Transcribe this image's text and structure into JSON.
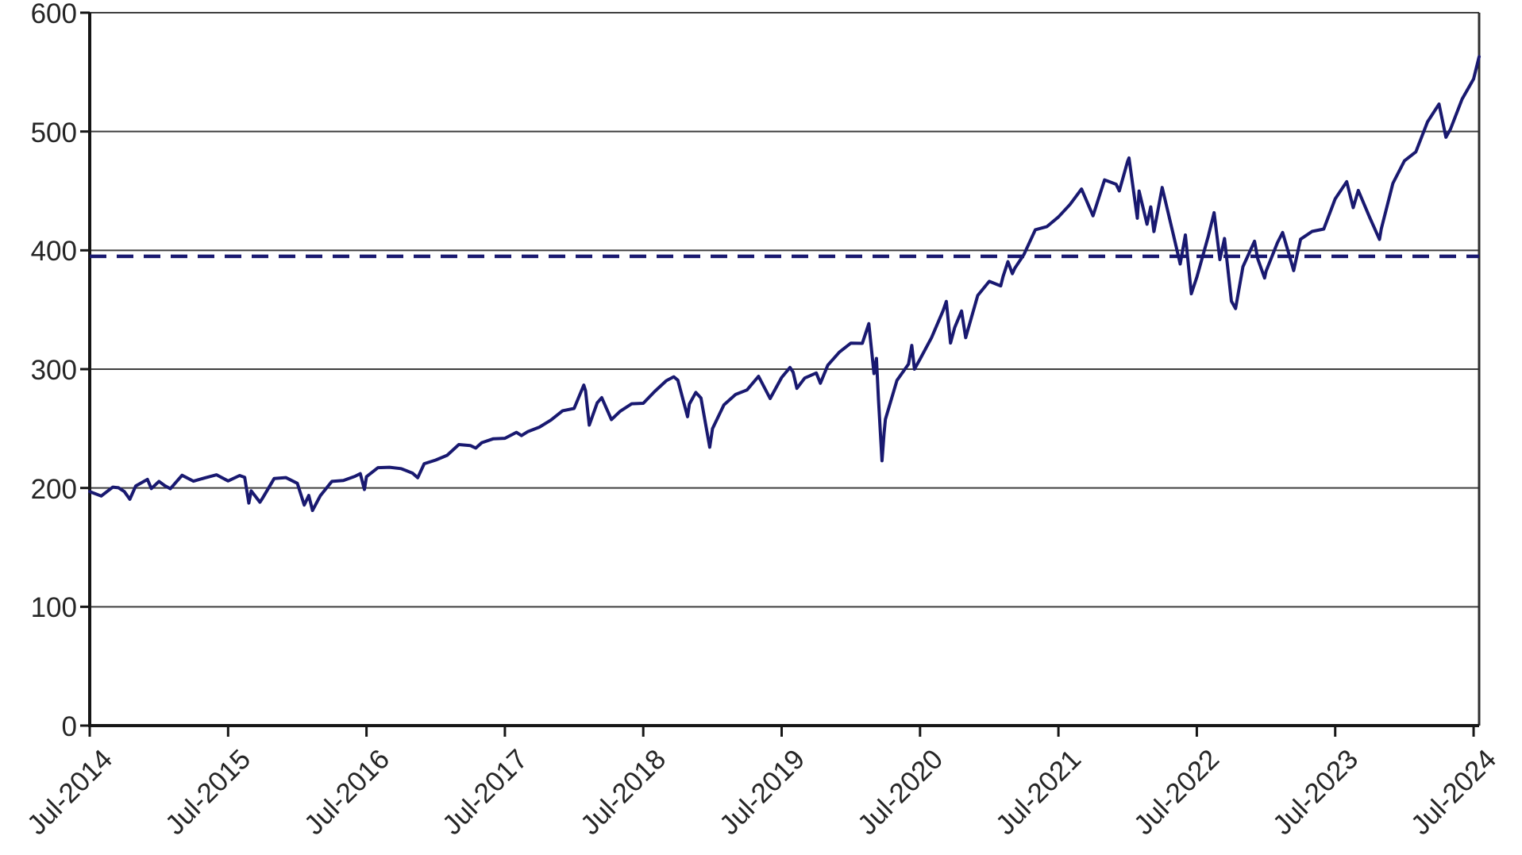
{
  "chart_data": {
    "type": "line",
    "title": "",
    "xlabel": "",
    "ylabel": "",
    "grid": "horizontal",
    "legend": "none",
    "x_axis": {
      "range": [
        2014.5,
        2024.54
      ],
      "tick_values": [
        2014.5,
        2015.5,
        2016.5,
        2017.5,
        2018.5,
        2019.5,
        2020.5,
        2021.5,
        2022.5,
        2023.5,
        2024.5
      ],
      "tick_labels": [
        "Jul-2014",
        "Jul-2015",
        "Jul-2016",
        "Jul-2017",
        "Jul-2018",
        "Jul-2019",
        "Jul-2020",
        "Jul-2021",
        "Jul-2022",
        "Jul-2023",
        "Jul-2024"
      ]
    },
    "y_axis": {
      "range": [
        0,
        600
      ],
      "tick_values": [
        0,
        100,
        200,
        300,
        400,
        500,
        600
      ],
      "tick_labels": [
        "0",
        "100",
        "200",
        "300",
        "400",
        "500",
        "600"
      ]
    },
    "reference_line": {
      "value": 395,
      "style": "dashed"
    },
    "series": [
      {
        "points": [
          [
            2014.5,
            197.0
          ],
          [
            2014.583,
            193.2
          ],
          [
            2014.667,
            200.7
          ],
          [
            2014.708,
            200.2
          ],
          [
            2014.75,
            197.0
          ],
          [
            2014.79,
            190.5
          ],
          [
            2014.833,
            201.7
          ],
          [
            2014.917,
            207.2
          ],
          [
            2014.945,
            199.5
          ],
          [
            2015.0,
            205.5
          ],
          [
            2015.042,
            202.0
          ],
          [
            2015.083,
            199.4
          ],
          [
            2015.167,
            210.7
          ],
          [
            2015.25,
            205.7
          ],
          [
            2015.333,
            208.5
          ],
          [
            2015.417,
            211.1
          ],
          [
            2015.5,
            205.9
          ],
          [
            2015.583,
            210.5
          ],
          [
            2015.62,
            208.9
          ],
          [
            2015.65,
            187.3
          ],
          [
            2015.667,
            197.6
          ],
          [
            2015.73,
            188.0
          ],
          [
            2015.75,
            191.6
          ],
          [
            2015.833,
            207.9
          ],
          [
            2015.917,
            208.7
          ],
          [
            2016.0,
            203.9
          ],
          [
            2016.05,
            185.6
          ],
          [
            2016.083,
            193.7
          ],
          [
            2016.11,
            181.1
          ],
          [
            2016.167,
            193.6
          ],
          [
            2016.25,
            205.5
          ],
          [
            2016.333,
            206.3
          ],
          [
            2016.417,
            209.8
          ],
          [
            2016.455,
            212.1
          ],
          [
            2016.485,
            198.7
          ],
          [
            2016.5,
            209.5
          ],
          [
            2016.583,
            217.1
          ],
          [
            2016.667,
            217.4
          ],
          [
            2016.75,
            216.3
          ],
          [
            2016.833,
            212.5
          ],
          [
            2016.87,
            208.6
          ],
          [
            2016.917,
            220.4
          ],
          [
            2017.0,
            223.5
          ],
          [
            2017.083,
            227.5
          ],
          [
            2017.167,
            236.5
          ],
          [
            2017.25,
            235.7
          ],
          [
            2017.29,
            233.6
          ],
          [
            2017.333,
            238.1
          ],
          [
            2017.417,
            241.4
          ],
          [
            2017.5,
            241.8
          ],
          [
            2017.583,
            246.8
          ],
          [
            2017.62,
            244.1
          ],
          [
            2017.667,
            247.5
          ],
          [
            2017.75,
            251.2
          ],
          [
            2017.833,
            257.2
          ],
          [
            2017.917,
            265.0
          ],
          [
            2018.0,
            266.9
          ],
          [
            2018.07,
            286.6
          ],
          [
            2018.083,
            281.9
          ],
          [
            2018.11,
            252.9
          ],
          [
            2018.167,
            271.7
          ],
          [
            2018.2,
            276.0
          ],
          [
            2018.27,
            257.5
          ],
          [
            2018.333,
            264.5
          ],
          [
            2018.417,
            270.9
          ],
          [
            2018.5,
            271.3
          ],
          [
            2018.583,
            281.3
          ],
          [
            2018.667,
            290.3
          ],
          [
            2018.72,
            293.6
          ],
          [
            2018.75,
            290.7
          ],
          [
            2018.82,
            260.0
          ],
          [
            2018.833,
            270.6
          ],
          [
            2018.88,
            280.4
          ],
          [
            2018.917,
            275.7
          ],
          [
            2018.98,
            234.3
          ],
          [
            2019.0,
            249.9
          ],
          [
            2019.083,
            269.9
          ],
          [
            2019.167,
            278.7
          ],
          [
            2019.25,
            282.5
          ],
          [
            2019.333,
            294.0
          ],
          [
            2019.417,
            275.3
          ],
          [
            2019.5,
            293.0
          ],
          [
            2019.56,
            301.4
          ],
          [
            2019.583,
            297.4
          ],
          [
            2019.61,
            283.8
          ],
          [
            2019.667,
            292.5
          ],
          [
            2019.75,
            296.8
          ],
          [
            2019.78,
            288.1
          ],
          [
            2019.833,
            303.3
          ],
          [
            2019.917,
            314.3
          ],
          [
            2020.0,
            321.9
          ],
          [
            2020.083,
            321.7
          ],
          [
            2020.13,
            338.3
          ],
          [
            2020.167,
            296.3
          ],
          [
            2020.185,
            309.0
          ],
          [
            2020.2,
            274.0
          ],
          [
            2020.225,
            222.9
          ],
          [
            2020.24,
            246.0
          ],
          [
            2020.25,
            257.8
          ],
          [
            2020.333,
            290.5
          ],
          [
            2020.417,
            304.3
          ],
          [
            2020.44,
            320.0
          ],
          [
            2020.46,
            300.0
          ],
          [
            2020.5,
            308.4
          ],
          [
            2020.583,
            326.5
          ],
          [
            2020.667,
            349.3
          ],
          [
            2020.69,
            357.0
          ],
          [
            2020.72,
            322.0
          ],
          [
            2020.75,
            334.9
          ],
          [
            2020.8,
            349.0
          ],
          [
            2020.83,
            326.5
          ],
          [
            2020.917,
            362.1
          ],
          [
            2021.0,
            373.9
          ],
          [
            2021.083,
            370.1
          ],
          [
            2021.1,
            378.0
          ],
          [
            2021.135,
            390.5
          ],
          [
            2021.167,
            380.4
          ],
          [
            2021.185,
            385.0
          ],
          [
            2021.25,
            396.3
          ],
          [
            2021.333,
            417.3
          ],
          [
            2021.417,
            420.0
          ],
          [
            2021.5,
            428.1
          ],
          [
            2021.583,
            438.5
          ],
          [
            2021.667,
            451.6
          ],
          [
            2021.75,
            429.1
          ],
          [
            2021.833,
            459.3
          ],
          [
            2021.917,
            455.6
          ],
          [
            2021.94,
            450.0
          ],
          [
            2022.0,
            475.0
          ],
          [
            2022.01,
            477.7
          ],
          [
            2022.07,
            427.0
          ],
          [
            2022.083,
            449.9
          ],
          [
            2022.14,
            422.0
          ],
          [
            2022.167,
            436.6
          ],
          [
            2022.19,
            415.8
          ],
          [
            2022.25,
            452.9
          ],
          [
            2022.333,
            412.0
          ],
          [
            2022.38,
            388.5
          ],
          [
            2022.417,
            412.9
          ],
          [
            2022.46,
            363.5
          ],
          [
            2022.5,
            377.3
          ],
          [
            2022.583,
            412.0
          ],
          [
            2022.625,
            431.7
          ],
          [
            2022.667,
            392.2
          ],
          [
            2022.7,
            410.0
          ],
          [
            2022.75,
            357.2
          ],
          [
            2022.78,
            351.0
          ],
          [
            2022.833,
            386.2
          ],
          [
            2022.917,
            407.7
          ],
          [
            2022.94,
            393.0
          ],
          [
            2022.99,
            376.7
          ],
          [
            2023.0,
            382.4
          ],
          [
            2023.083,
            406.5
          ],
          [
            2023.12,
            415.0
          ],
          [
            2023.167,
            396.3
          ],
          [
            2023.2,
            383.0
          ],
          [
            2023.25,
            409.4
          ],
          [
            2023.333,
            415.9
          ],
          [
            2023.417,
            417.9
          ],
          [
            2023.5,
            443.3
          ],
          [
            2023.583,
            457.8
          ],
          [
            2023.63,
            436.0
          ],
          [
            2023.667,
            450.4
          ],
          [
            2023.75,
            427.5
          ],
          [
            2023.82,
            409.2
          ],
          [
            2023.833,
            418.2
          ],
          [
            2023.917,
            456.4
          ],
          [
            2024.0,
            475.3
          ],
          [
            2024.083,
            482.9
          ],
          [
            2024.167,
            508.1
          ],
          [
            2024.25,
            523.1
          ],
          [
            2024.3,
            495.2
          ],
          [
            2024.333,
            502.0
          ],
          [
            2024.417,
            527.4
          ],
          [
            2024.5,
            544.2
          ],
          [
            2024.54,
            563.0
          ]
        ]
      }
    ],
    "colors": {
      "series": "#191970",
      "reference": "#191970",
      "grid": "#3f3f3f",
      "axis": "#161616",
      "frame": "#2e2e2e",
      "label": "#262626",
      "background": "#ffffff"
    }
  }
}
